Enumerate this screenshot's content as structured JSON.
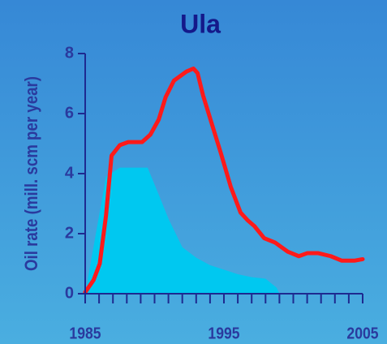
{
  "chart_data": {
    "type": "line",
    "title": "Ula",
    "y_label": "Oil rate (mill. scm per year)",
    "xlim": [
      1985,
      2005
    ],
    "xticks": [
      1985,
      1995,
      2005
    ],
    "xminorticks": [
      1986,
      1987,
      1988,
      1989,
      1990,
      1991,
      1992,
      1993,
      1994,
      1996,
      1997,
      1998,
      1999,
      2000,
      2001,
      2002,
      2003,
      2004
    ],
    "ylim": [
      0,
      8
    ],
    "yticks": [
      0,
      2,
      4,
      6,
      8
    ],
    "series": [
      {
        "kind": "area",
        "color": "#00c8f0",
        "x": [
          1985,
          1986.5,
          1987.5,
          1989.5,
          1990.3,
          1991,
          1992,
          1993,
          1994,
          1995,
          1996,
          1997,
          1998,
          1998.8,
          1999
        ],
        "values": [
          0,
          3.9,
          4.2,
          4.2,
          3.3,
          2.5,
          1.55,
          1.2,
          0.95,
          0.8,
          0.65,
          0.55,
          0.5,
          0.2,
          0
        ]
      },
      {
        "kind": "line",
        "color": "#ff1a1a",
        "x": [
          1985,
          1985.6,
          1986.05,
          1986.5,
          1986.9,
          1987.5,
          1988.1,
          1989.1,
          1989.7,
          1990.3,
          1990.8,
          1991.4,
          1992.3,
          1992.8,
          1993.1,
          1993.5,
          1994.1,
          1994.8,
          1995.5,
          1996.2,
          1996.7,
          1997.2,
          1997.9,
          1998.7,
          1999.6,
          2000.4,
          2001,
          2001.8,
          2002.7,
          2003.5,
          2004.4,
          2005
        ],
        "values": [
          0.05,
          0.45,
          1.0,
          2.6,
          4.6,
          4.95,
          5.05,
          5.05,
          5.3,
          5.8,
          6.55,
          7.1,
          7.4,
          7.5,
          7.35,
          6.6,
          5.7,
          4.65,
          3.55,
          2.7,
          2.45,
          2.25,
          1.85,
          1.7,
          1.4,
          1.25,
          1.35,
          1.35,
          1.25,
          1.1,
          1.1,
          1.15
        ]
      }
    ]
  }
}
